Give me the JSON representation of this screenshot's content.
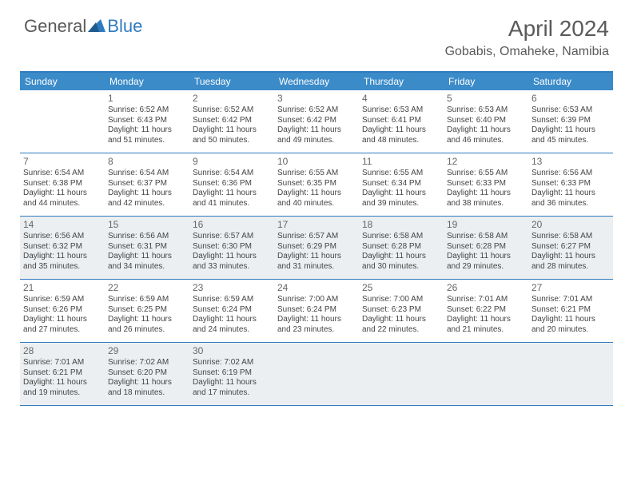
{
  "logo": {
    "general": "General",
    "blue": "Blue"
  },
  "title": "April 2024",
  "location": "Gobabis, Omaheke, Namibia",
  "colors": {
    "header_bg": "#3b8bc9",
    "border": "#2f7bbf",
    "shade": "#eceff1",
    "text": "#444444",
    "title_text": "#5a5a5a"
  },
  "weekdays": [
    "Sunday",
    "Monday",
    "Tuesday",
    "Wednesday",
    "Thursday",
    "Friday",
    "Saturday"
  ],
  "weeks": [
    [
      {
        "num": "",
        "sr": "",
        "ss": "",
        "dl": ""
      },
      {
        "num": "1",
        "sr": "Sunrise: 6:52 AM",
        "ss": "Sunset: 6:43 PM",
        "dl": "Daylight: 11 hours and 51 minutes."
      },
      {
        "num": "2",
        "sr": "Sunrise: 6:52 AM",
        "ss": "Sunset: 6:42 PM",
        "dl": "Daylight: 11 hours and 50 minutes."
      },
      {
        "num": "3",
        "sr": "Sunrise: 6:52 AM",
        "ss": "Sunset: 6:42 PM",
        "dl": "Daylight: 11 hours and 49 minutes."
      },
      {
        "num": "4",
        "sr": "Sunrise: 6:53 AM",
        "ss": "Sunset: 6:41 PM",
        "dl": "Daylight: 11 hours and 48 minutes."
      },
      {
        "num": "5",
        "sr": "Sunrise: 6:53 AM",
        "ss": "Sunset: 6:40 PM",
        "dl": "Daylight: 11 hours and 46 minutes."
      },
      {
        "num": "6",
        "sr": "Sunrise: 6:53 AM",
        "ss": "Sunset: 6:39 PM",
        "dl": "Daylight: 11 hours and 45 minutes."
      }
    ],
    [
      {
        "num": "7",
        "sr": "Sunrise: 6:54 AM",
        "ss": "Sunset: 6:38 PM",
        "dl": "Daylight: 11 hours and 44 minutes."
      },
      {
        "num": "8",
        "sr": "Sunrise: 6:54 AM",
        "ss": "Sunset: 6:37 PM",
        "dl": "Daylight: 11 hours and 42 minutes."
      },
      {
        "num": "9",
        "sr": "Sunrise: 6:54 AM",
        "ss": "Sunset: 6:36 PM",
        "dl": "Daylight: 11 hours and 41 minutes."
      },
      {
        "num": "10",
        "sr": "Sunrise: 6:55 AM",
        "ss": "Sunset: 6:35 PM",
        "dl": "Daylight: 11 hours and 40 minutes."
      },
      {
        "num": "11",
        "sr": "Sunrise: 6:55 AM",
        "ss": "Sunset: 6:34 PM",
        "dl": "Daylight: 11 hours and 39 minutes."
      },
      {
        "num": "12",
        "sr": "Sunrise: 6:55 AM",
        "ss": "Sunset: 6:33 PM",
        "dl": "Daylight: 11 hours and 38 minutes."
      },
      {
        "num": "13",
        "sr": "Sunrise: 6:56 AM",
        "ss": "Sunset: 6:33 PM",
        "dl": "Daylight: 11 hours and 36 minutes."
      }
    ],
    [
      {
        "num": "14",
        "sr": "Sunrise: 6:56 AM",
        "ss": "Sunset: 6:32 PM",
        "dl": "Daylight: 11 hours and 35 minutes."
      },
      {
        "num": "15",
        "sr": "Sunrise: 6:56 AM",
        "ss": "Sunset: 6:31 PM",
        "dl": "Daylight: 11 hours and 34 minutes."
      },
      {
        "num": "16",
        "sr": "Sunrise: 6:57 AM",
        "ss": "Sunset: 6:30 PM",
        "dl": "Daylight: 11 hours and 33 minutes."
      },
      {
        "num": "17",
        "sr": "Sunrise: 6:57 AM",
        "ss": "Sunset: 6:29 PM",
        "dl": "Daylight: 11 hours and 31 minutes."
      },
      {
        "num": "18",
        "sr": "Sunrise: 6:58 AM",
        "ss": "Sunset: 6:28 PM",
        "dl": "Daylight: 11 hours and 30 minutes."
      },
      {
        "num": "19",
        "sr": "Sunrise: 6:58 AM",
        "ss": "Sunset: 6:28 PM",
        "dl": "Daylight: 11 hours and 29 minutes."
      },
      {
        "num": "20",
        "sr": "Sunrise: 6:58 AM",
        "ss": "Sunset: 6:27 PM",
        "dl": "Daylight: 11 hours and 28 minutes."
      }
    ],
    [
      {
        "num": "21",
        "sr": "Sunrise: 6:59 AM",
        "ss": "Sunset: 6:26 PM",
        "dl": "Daylight: 11 hours and 27 minutes."
      },
      {
        "num": "22",
        "sr": "Sunrise: 6:59 AM",
        "ss": "Sunset: 6:25 PM",
        "dl": "Daylight: 11 hours and 26 minutes."
      },
      {
        "num": "23",
        "sr": "Sunrise: 6:59 AM",
        "ss": "Sunset: 6:24 PM",
        "dl": "Daylight: 11 hours and 24 minutes."
      },
      {
        "num": "24",
        "sr": "Sunrise: 7:00 AM",
        "ss": "Sunset: 6:24 PM",
        "dl": "Daylight: 11 hours and 23 minutes."
      },
      {
        "num": "25",
        "sr": "Sunrise: 7:00 AM",
        "ss": "Sunset: 6:23 PM",
        "dl": "Daylight: 11 hours and 22 minutes."
      },
      {
        "num": "26",
        "sr": "Sunrise: 7:01 AM",
        "ss": "Sunset: 6:22 PM",
        "dl": "Daylight: 11 hours and 21 minutes."
      },
      {
        "num": "27",
        "sr": "Sunrise: 7:01 AM",
        "ss": "Sunset: 6:21 PM",
        "dl": "Daylight: 11 hours and 20 minutes."
      }
    ],
    [
      {
        "num": "28",
        "sr": "Sunrise: 7:01 AM",
        "ss": "Sunset: 6:21 PM",
        "dl": "Daylight: 11 hours and 19 minutes."
      },
      {
        "num": "29",
        "sr": "Sunrise: 7:02 AM",
        "ss": "Sunset: 6:20 PM",
        "dl": "Daylight: 11 hours and 18 minutes."
      },
      {
        "num": "30",
        "sr": "Sunrise: 7:02 AM",
        "ss": "Sunset: 6:19 PM",
        "dl": "Daylight: 11 hours and 17 minutes."
      },
      {
        "num": "",
        "sr": "",
        "ss": "",
        "dl": ""
      },
      {
        "num": "",
        "sr": "",
        "ss": "",
        "dl": ""
      },
      {
        "num": "",
        "sr": "",
        "ss": "",
        "dl": ""
      },
      {
        "num": "",
        "sr": "",
        "ss": "",
        "dl": ""
      }
    ]
  ],
  "shaded_weeks": [
    2,
    4
  ]
}
